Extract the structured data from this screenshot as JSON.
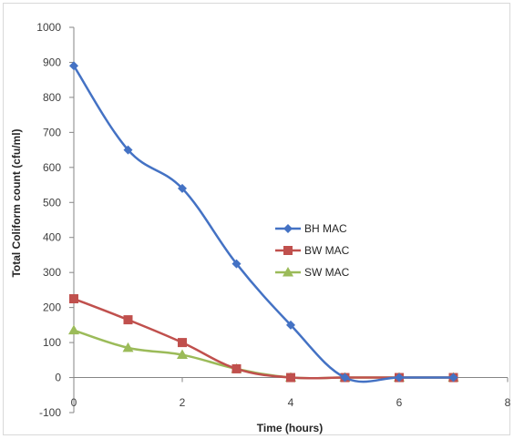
{
  "chart_data": {
    "type": "line",
    "title": "",
    "xlabel": "Time (hours)",
    "ylabel": "Total Coliform count (cfu/ml)",
    "xlim": [
      0,
      8
    ],
    "ylim": [
      -100,
      1000
    ],
    "x_ticks": [
      "0",
      "2",
      "4",
      "6",
      "8"
    ],
    "y_ticks": [
      "-100",
      "0",
      "100",
      "200",
      "300",
      "400",
      "500",
      "600",
      "700",
      "800",
      "900",
      "1000"
    ],
    "grid": false,
    "legend_position": "right",
    "series": [
      {
        "name": "BH MAC",
        "color": "#4472c4",
        "marker": "diamond",
        "x": [
          0,
          1,
          2,
          3,
          4,
          5,
          6,
          7
        ],
        "y": [
          890,
          650,
          540,
          325,
          150,
          0,
          0,
          0
        ]
      },
      {
        "name": "BW MAC",
        "color": "#c0504d",
        "marker": "square",
        "x": [
          0,
          1,
          2,
          3,
          4,
          5,
          6,
          7
        ],
        "y": [
          225,
          165,
          100,
          25,
          0,
          0,
          0,
          0
        ]
      },
      {
        "name": "SW MAC",
        "color": "#9bbb59",
        "marker": "triangle",
        "x": [
          0,
          1,
          2,
          3,
          4,
          5,
          6,
          7
        ],
        "y": [
          135,
          85,
          65,
          25,
          0,
          0,
          0,
          0
        ]
      }
    ]
  }
}
